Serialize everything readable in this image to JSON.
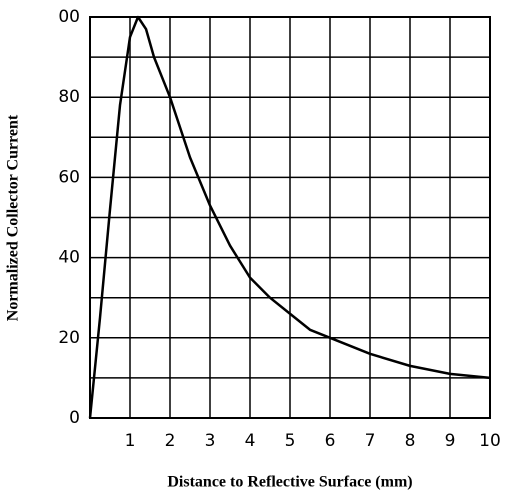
{
  "chart_data": {
    "type": "line",
    "xlabel": "Distance to Reflective Surface (mm)",
    "ylabel": "Normalized Collector Current",
    "x": [
      0,
      0.25,
      0.5,
      0.75,
      1,
      1.2,
      1.4,
      1.6,
      2,
      2.5,
      3,
      3.5,
      4,
      4.5,
      5,
      5.5,
      6,
      7,
      8,
      9,
      10
    ],
    "values": [
      0,
      25,
      52,
      78,
      95,
      100,
      97,
      90,
      80,
      65,
      53,
      43,
      35,
      30,
      26,
      22,
      20,
      16,
      13,
      11,
      10
    ],
    "color": "#000000",
    "xlim": [
      0,
      10
    ],
    "xticks": [
      1,
      2,
      3,
      4,
      5,
      6,
      7,
      8,
      9,
      10
    ],
    "ylim": [
      0,
      100
    ],
    "yticks": [
      0,
      {
        "value": 10,
        "label": null
      },
      20,
      {
        "value": 30,
        "label": null
      },
      40,
      {
        "value": 50,
        "label": null
      },
      60,
      {
        "value": 70,
        "label": null
      },
      80,
      {
        "value": 90,
        "label": null
      },
      {
        "value": 100,
        "label": "00"
      }
    ],
    "grid": true
  }
}
